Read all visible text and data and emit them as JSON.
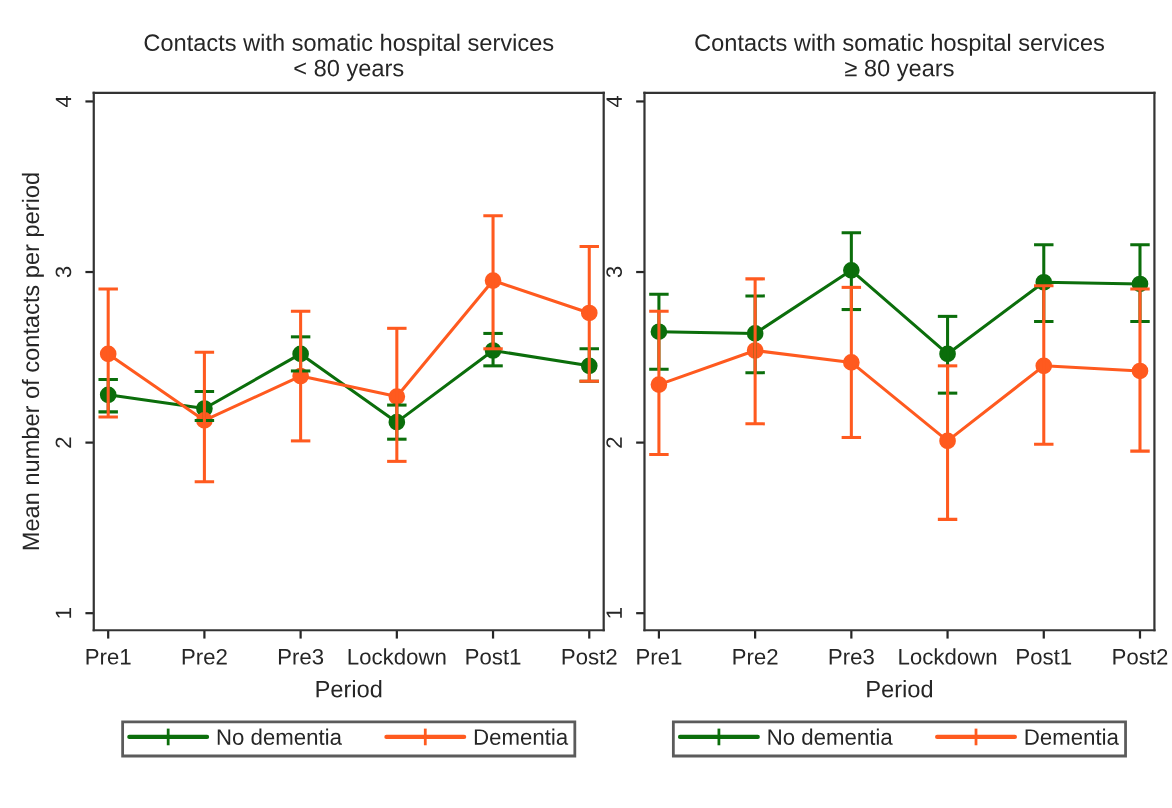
{
  "chart_data": [
    {
      "type": "line",
      "title": "Contacts with somatic hospital services\n< 80 years",
      "xlabel": "Period",
      "ylabel": "Mean number of contacts per period",
      "categories": [
        "Pre1",
        "Pre2",
        "Pre3",
        "Lockdown",
        "Post1",
        "Post2"
      ],
      "ylim": [
        0.9,
        4.05
      ],
      "yticks": [
        1,
        2,
        3,
        4
      ],
      "grid": false,
      "legend": "bottom",
      "marker": "circle",
      "line_style": "solid",
      "series": [
        {
          "name": "No dementia",
          "color": "#0b6e0b",
          "values": [
            2.28,
            2.2,
            2.52,
            2.12,
            2.54,
            2.45
          ],
          "errors": [
            [
              2.18,
              2.37
            ],
            [
              2.13,
              2.3
            ],
            [
              2.42,
              2.62
            ],
            [
              2.02,
              2.22
            ],
            [
              2.45,
              2.64
            ],
            [
              2.36,
              2.55
            ]
          ]
        },
        {
          "name": "Dementia",
          "color": "#ff5a1f",
          "values": [
            2.52,
            2.13,
            2.39,
            2.27,
            2.95,
            2.76
          ],
          "errors": [
            [
              2.15,
              2.9
            ],
            [
              1.77,
              2.53
            ],
            [
              2.01,
              2.77
            ],
            [
              1.89,
              2.67
            ],
            [
              2.55,
              3.33
            ],
            [
              2.36,
              3.15
            ]
          ]
        }
      ]
    },
    {
      "type": "line",
      "title": "Contacts with somatic hospital services\n≥ 80 years",
      "xlabel": "Period",
      "categories": [
        "Pre1",
        "Pre2",
        "Pre3",
        "Lockdown",
        "Post1",
        "Post2"
      ],
      "ylim": [
        0.9,
        4.05
      ],
      "yticks": [
        1,
        2,
        3,
        4
      ],
      "grid": false,
      "legend": "bottom",
      "marker": "circle",
      "line_style": "solid",
      "series": [
        {
          "name": "No dementia",
          "color": "#0b6e0b",
          "values": [
            2.65,
            2.64,
            3.01,
            2.52,
            2.94,
            2.93
          ],
          "errors": [
            [
              2.43,
              2.87
            ],
            [
              2.41,
              2.86
            ],
            [
              2.78,
              3.23
            ],
            [
              2.29,
              2.74
            ],
            [
              2.71,
              3.16
            ],
            [
              2.71,
              3.16
            ]
          ]
        },
        {
          "name": "Dementia",
          "color": "#ff5a1f",
          "values": [
            2.34,
            2.54,
            2.47,
            2.01,
            2.45,
            2.42
          ],
          "errors": [
            [
              1.93,
              2.77
            ],
            [
              2.11,
              2.96
            ],
            [
              2.03,
              2.91
            ],
            [
              1.55,
              2.45
            ],
            [
              1.99,
              2.92
            ],
            [
              1.95,
              2.9
            ]
          ]
        }
      ]
    }
  ]
}
